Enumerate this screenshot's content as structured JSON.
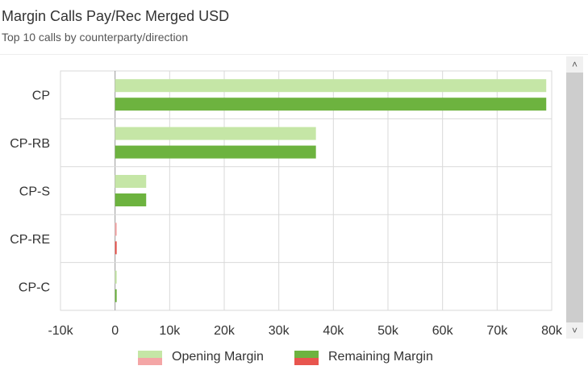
{
  "header": {
    "title": "Margin Calls Pay/Rec Merged USD",
    "subtitle": "Top 10 calls by counterparty/direction"
  },
  "colors": {
    "opening_positive": "#c5e6a6",
    "remaining_positive": "#6db33f",
    "opening_negative": "#f4a6a6",
    "remaining_negative": "#e8554e",
    "grid": "#d9d9d9",
    "zero_line": "#999999"
  },
  "chart_data": {
    "type": "bar",
    "orientation": "horizontal",
    "categories": [
      "CP",
      "CP-RB",
      "CP-S",
      "CP-RE",
      "CP-C"
    ],
    "series": [
      {
        "name": "Opening Margin",
        "values": [
          79000,
          36800,
          5700,
          200,
          150
        ]
      },
      {
        "name": "Remaining Margin",
        "values": [
          79000,
          36800,
          5700,
          200,
          150
        ]
      }
    ],
    "xlim": [
      -10000,
      80000
    ],
    "xticks": [
      "-10k",
      "0",
      "10k",
      "20k",
      "30k",
      "40k",
      "50k",
      "60k",
      "70k",
      "80k"
    ],
    "xlabel": "",
    "ylabel": "",
    "grid": true,
    "legend": "bottom-center"
  },
  "scrollbar": {
    "up_icon": "chevron-up-icon",
    "down_icon": "chevron-down-icon",
    "up_glyph": "˄",
    "down_glyph": "˅"
  }
}
